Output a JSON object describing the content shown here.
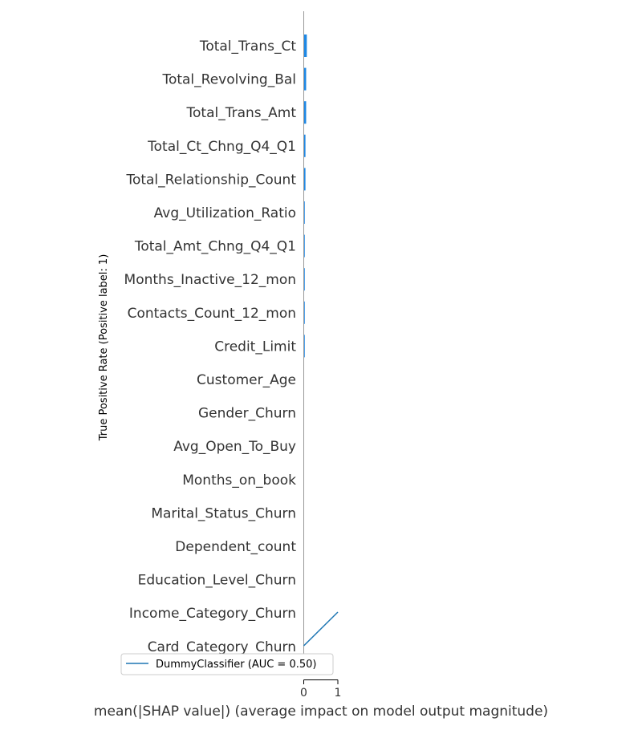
{
  "chart_data": {
    "type": "bar",
    "orientation": "horizontal",
    "categories": [
      "Total_Trans_Ct",
      "Total_Revolving_Bal",
      "Total_Trans_Amt",
      "Total_Ct_Chng_Q4_Q1",
      "Total_Relationship_Count",
      "Avg_Utilization_Ratio",
      "Total_Amt_Chng_Q4_Q1",
      "Months_Inactive_12_mon",
      "Contacts_Count_12_mon",
      "Credit_Limit",
      "Customer_Age",
      "Gender_Churn",
      "Avg_Open_To_Buy",
      "Months_on_book",
      "Marital_Status_Churn",
      "Dependent_count",
      "Education_Level_Churn",
      "Income_Category_Churn",
      "Card_Category_Churn"
    ],
    "values": [
      0.09,
      0.07,
      0.07,
      0.05,
      0.05,
      0.03,
      0.03,
      0.03,
      0.03,
      0.03,
      0,
      0,
      0,
      0,
      0,
      0,
      0,
      0,
      0
    ],
    "bar_color": "#1e88e5",
    "xlabel": "mean(|SHAP value|) (average impact on model output magnitude)",
    "ylabel": "True Positive Rate (Positive label: 1)",
    "xlim": [
      0,
      1
    ],
    "xticks": [
      "0",
      "1"
    ],
    "grid": false,
    "overlay_line": {
      "name": "DummyClassifier (AUC = 0.50)",
      "color": "#1f77b4",
      "x": [
        0,
        1
      ],
      "y": [
        0,
        1
      ]
    },
    "legend": {
      "placement": "bottom-left",
      "label": "DummyClassifier (AUC = 0.50)"
    }
  }
}
